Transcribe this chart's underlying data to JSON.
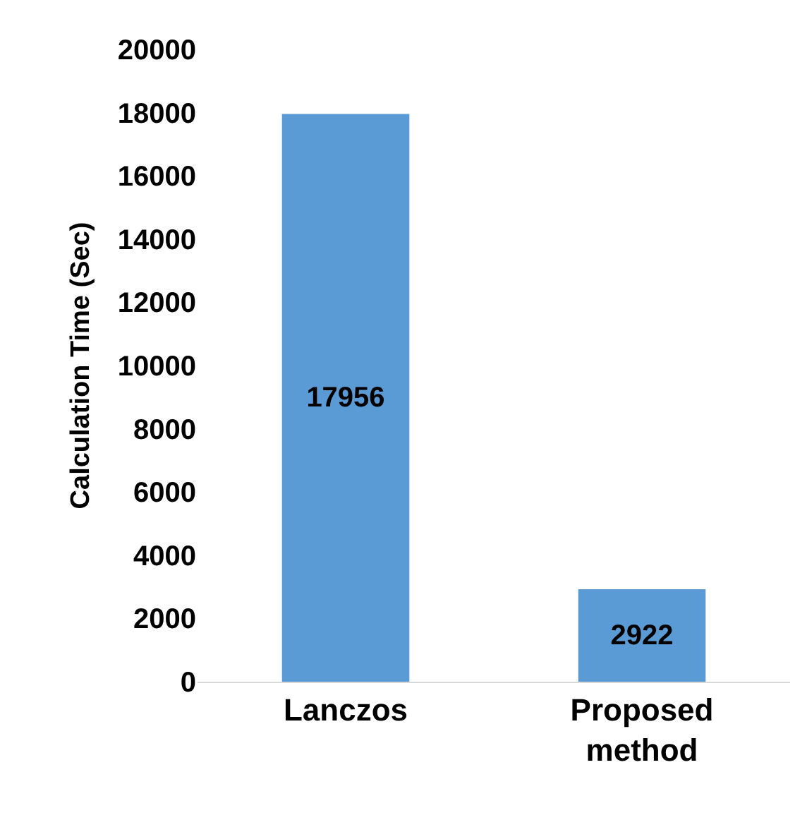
{
  "chart_data": {
    "type": "bar",
    "ylabel": "Calculation Time (Sec)",
    "categories": [
      "Lanczos",
      "Proposed method"
    ],
    "values": [
      17956,
      2922
    ],
    "color": "#5b9bd5",
    "ylim": [
      0,
      20000
    ],
    "yticks": [
      0,
      2000,
      4000,
      6000,
      8000,
      10000,
      12000,
      14000,
      16000,
      18000,
      20000
    ],
    "data_labels": true,
    "grid": false,
    "legend": false
  }
}
